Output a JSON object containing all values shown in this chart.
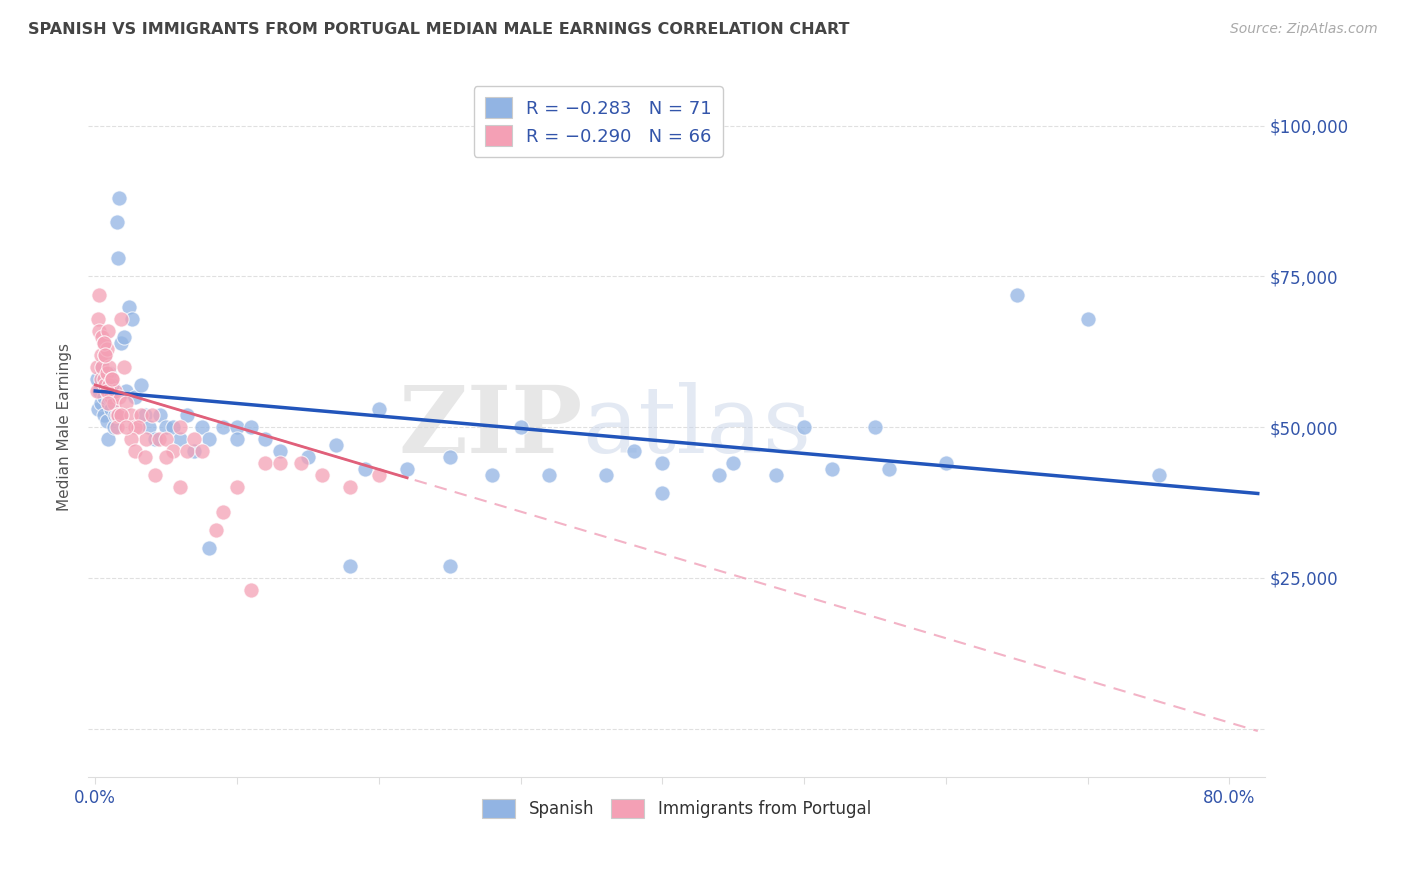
{
  "title": "SPANISH VS IMMIGRANTS FROM PORTUGAL MEDIAN MALE EARNINGS CORRELATION CHART",
  "source": "Source: ZipAtlas.com",
  "ylabel": "Median Male Earnings",
  "watermark": "ZIPatlas",
  "legend_text1": "R = −0.283   N = 71",
  "legend_text2": "R = −0.290   N = 66",
  "legend_label1": "Spanish",
  "legend_label2": "Immigrants from Portugal",
  "ytick_positions": [
    0,
    25000,
    50000,
    75000,
    100000
  ],
  "ytick_labels": [
    "",
    "$25,000",
    "$50,000",
    "$75,000",
    "$100,000"
  ],
  "blue_scatter_color": "#92B4E3",
  "pink_scatter_color": "#F4A0B5",
  "blue_line_color": "#2255BB",
  "pink_line_color": "#E0607A",
  "pink_dash_color": "#F0A0B8",
  "text_color": "#3355AA",
  "title_color": "#444444",
  "source_color": "#AAAAAA",
  "grid_color": "#DDDDDD",
  "background_color": "#FFFFFF",
  "xmin": -0.005,
  "xmax": 0.825,
  "ymin": -8000,
  "ymax": 108000,
  "blue_scatter_x": [
    0.001,
    0.002,
    0.003,
    0.004,
    0.005,
    0.006,
    0.006,
    0.007,
    0.008,
    0.009,
    0.009,
    0.01,
    0.01,
    0.011,
    0.012,
    0.013,
    0.014,
    0.015,
    0.016,
    0.017,
    0.018,
    0.02,
    0.022,
    0.024,
    0.026,
    0.028,
    0.032,
    0.035,
    0.038,
    0.042,
    0.046,
    0.05,
    0.055,
    0.06,
    0.065,
    0.07,
    0.075,
    0.08,
    0.09,
    0.1,
    0.11,
    0.12,
    0.13,
    0.15,
    0.17,
    0.19,
    0.22,
    0.25,
    0.28,
    0.32,
    0.36,
    0.4,
    0.44,
    0.48,
    0.52,
    0.56,
    0.6,
    0.65,
    0.7,
    0.75,
    0.55,
    0.3,
    0.2,
    0.38,
    0.45,
    0.5,
    0.1,
    0.08,
    0.25,
    0.4,
    0.18
  ],
  "blue_scatter_y": [
    58000,
    53000,
    56000,
    54000,
    60000,
    52000,
    55000,
    57000,
    51000,
    56000,
    48000,
    55000,
    59000,
    53000,
    57000,
    50000,
    52000,
    84000,
    78000,
    88000,
    64000,
    65000,
    56000,
    70000,
    68000,
    55000,
    57000,
    52000,
    50000,
    48000,
    52000,
    50000,
    50000,
    48000,
    52000,
    46000,
    50000,
    48000,
    50000,
    50000,
    50000,
    48000,
    46000,
    45000,
    47000,
    43000,
    43000,
    45000,
    42000,
    42000,
    42000,
    44000,
    42000,
    42000,
    43000,
    43000,
    44000,
    72000,
    68000,
    42000,
    50000,
    50000,
    53000,
    46000,
    44000,
    50000,
    48000,
    30000,
    27000,
    39000,
    27000
  ],
  "pink_scatter_x": [
    0.001,
    0.001,
    0.002,
    0.003,
    0.003,
    0.004,
    0.004,
    0.005,
    0.005,
    0.006,
    0.006,
    0.007,
    0.007,
    0.008,
    0.008,
    0.009,
    0.009,
    0.01,
    0.01,
    0.011,
    0.012,
    0.013,
    0.014,
    0.015,
    0.016,
    0.017,
    0.018,
    0.02,
    0.022,
    0.025,
    0.028,
    0.032,
    0.036,
    0.04,
    0.045,
    0.05,
    0.055,
    0.06,
    0.065,
    0.07,
    0.075,
    0.085,
    0.09,
    0.1,
    0.11,
    0.12,
    0.13,
    0.145,
    0.16,
    0.18,
    0.2,
    0.03,
    0.025,
    0.008,
    0.006,
    0.007,
    0.009,
    0.012,
    0.015,
    0.018,
    0.022,
    0.028,
    0.035,
    0.042,
    0.05,
    0.06
  ],
  "pink_scatter_y": [
    60000,
    56000,
    68000,
    72000,
    66000,
    62000,
    58000,
    65000,
    60000,
    64000,
    58000,
    62000,
    57000,
    63000,
    59000,
    66000,
    56000,
    60000,
    57000,
    55000,
    58000,
    54000,
    56000,
    52000,
    52000,
    55000,
    68000,
    60000,
    54000,
    52000,
    50000,
    52000,
    48000,
    52000,
    48000,
    48000,
    46000,
    50000,
    46000,
    48000,
    46000,
    33000,
    36000,
    40000,
    23000,
    44000,
    44000,
    44000,
    42000,
    40000,
    42000,
    50000,
    48000,
    56000,
    64000,
    62000,
    54000,
    58000,
    50000,
    52000,
    50000,
    46000,
    45000,
    42000,
    45000,
    40000
  ]
}
